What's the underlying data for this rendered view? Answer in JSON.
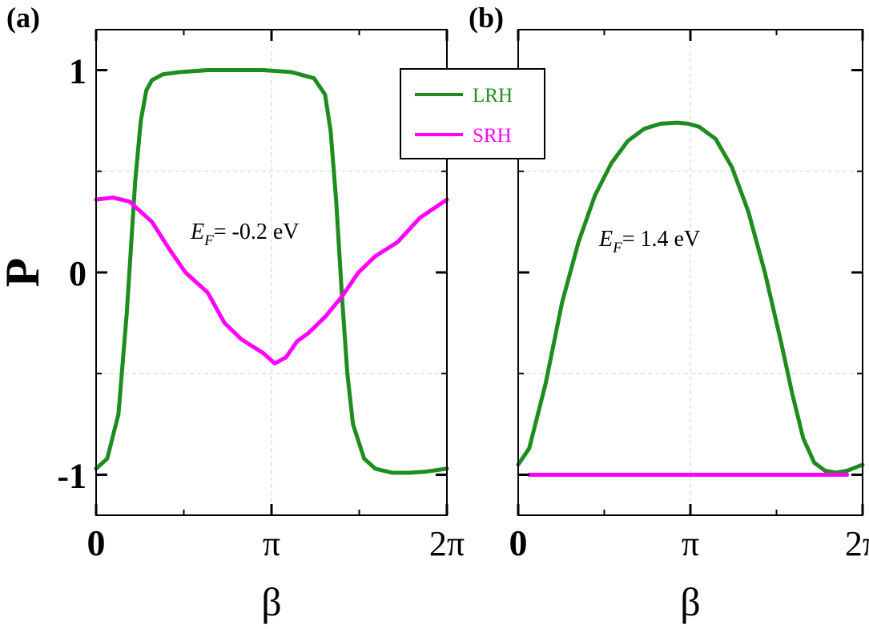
{
  "chart_data": [
    {
      "type": "line",
      "panel_label": "(a)",
      "xlabel": "β",
      "ylabel": "P",
      "xlim": [
        0,
        6.2832
      ],
      "ylim": [
        -1.2,
        1.2
      ],
      "xticks": [
        {
          "value": 0,
          "label": "0"
        },
        {
          "value": 3.1416,
          "label": "π"
        },
        {
          "value": 6.2832,
          "label": "2π"
        }
      ],
      "yticks": [
        {
          "value": -1,
          "label": "-1"
        },
        {
          "value": 0,
          "label": "0"
        },
        {
          "value": 1,
          "label": "1"
        }
      ],
      "grid": true,
      "annotation": {
        "prefix": "E",
        "subscript": "F",
        "text": "= -0.2 eV"
      },
      "series": [
        {
          "name": "LRH",
          "color": "#1e8c1e",
          "x": [
            0,
            0.2,
            0.4,
            0.55,
            0.7,
            0.8,
            0.9,
            1.0,
            1.2,
            1.5,
            2.0,
            2.5,
            3.0,
            3.5,
            3.9,
            4.1,
            4.2,
            4.3,
            4.4,
            4.5,
            4.6,
            4.8,
            5.0,
            5.3,
            5.6,
            5.9,
            6.2832
          ],
          "y": [
            -0.97,
            -0.92,
            -0.7,
            -0.2,
            0.45,
            0.75,
            0.9,
            0.95,
            0.98,
            0.99,
            1.0,
            1.0,
            1.0,
            0.99,
            0.96,
            0.88,
            0.7,
            0.35,
            -0.1,
            -0.5,
            -0.75,
            -0.92,
            -0.97,
            -0.99,
            -0.99,
            -0.985,
            -0.97
          ]
        },
        {
          "name": "SRH",
          "color": "#ff00ff",
          "x": [
            0,
            0.3,
            0.6,
            1.0,
            1.3,
            1.6,
            2.0,
            2.3,
            2.6,
            3.0,
            3.2,
            3.4,
            3.6,
            3.8,
            4.1,
            4.4,
            4.7,
            5.0,
            5.4,
            5.8,
            6.2832
          ],
          "y": [
            0.36,
            0.37,
            0.35,
            0.25,
            0.12,
            0.0,
            -0.1,
            -0.25,
            -0.33,
            -0.4,
            -0.45,
            -0.42,
            -0.34,
            -0.3,
            -0.22,
            -0.12,
            0.0,
            0.08,
            0.15,
            0.27,
            0.36
          ]
        }
      ]
    },
    {
      "type": "line",
      "panel_label": "(b)",
      "xlabel": "β",
      "ylabel": "",
      "xlim": [
        0,
        6.2832
      ],
      "ylim": [
        -1.2,
        1.2
      ],
      "xticks": [
        {
          "value": 0,
          "label": "0"
        },
        {
          "value": 3.1416,
          "label": "π"
        },
        {
          "value": 6.2832,
          "label": "2π"
        }
      ],
      "yticks": [
        {
          "value": -1,
          "label": ""
        },
        {
          "value": 0,
          "label": ""
        },
        {
          "value": 1,
          "label": ""
        }
      ],
      "grid": true,
      "annotation": {
        "prefix": "E",
        "subscript": "F",
        "text": "= 1.4 eV"
      },
      "series": [
        {
          "name": "LRH",
          "color": "#1e8c1e",
          "x": [
            0,
            0.2,
            0.5,
            0.8,
            1.1,
            1.4,
            1.7,
            2.0,
            2.3,
            2.6,
            2.9,
            3.1,
            3.3,
            3.6,
            3.9,
            4.2,
            4.5,
            4.8,
            5.0,
            5.2,
            5.4,
            5.6,
            5.8,
            6.0,
            6.2832
          ],
          "y": [
            -0.95,
            -0.87,
            -0.55,
            -0.15,
            0.15,
            0.38,
            0.54,
            0.65,
            0.71,
            0.735,
            0.74,
            0.735,
            0.72,
            0.66,
            0.52,
            0.3,
            0.0,
            -0.35,
            -0.6,
            -0.82,
            -0.94,
            -0.98,
            -0.99,
            -0.98,
            -0.95
          ]
        },
        {
          "name": "SRH",
          "color": "#ff00ff",
          "x": [
            0.2,
            6.0
          ],
          "y": [
            -1.0,
            -1.0
          ]
        }
      ]
    }
  ],
  "legend": {
    "placement": "top-center",
    "entries": [
      {
        "label": "LRH",
        "color": "#1e8c1e"
      },
      {
        "label": "SRH",
        "color": "#ff00ff"
      }
    ]
  }
}
